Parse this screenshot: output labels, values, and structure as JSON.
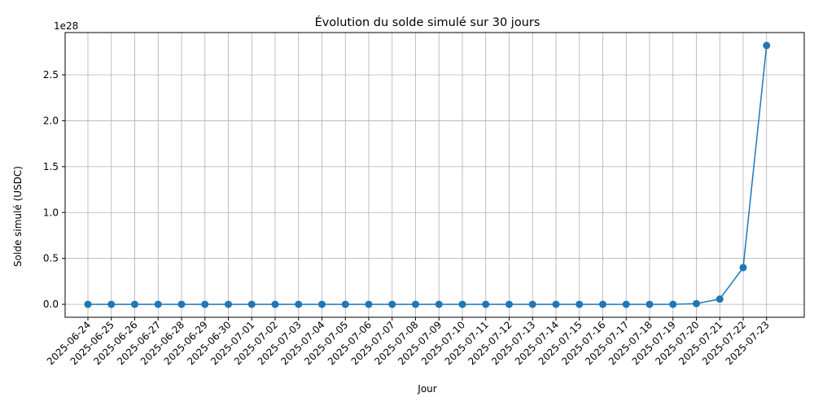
{
  "chart_data": {
    "type": "line",
    "title": "Évolution du solde simulé sur 30 jours",
    "xlabel": "Jour",
    "ylabel": "Solde simulé (USDC)",
    "y_offset_label": "1e28",
    "y_scale": 1e+28,
    "grid": true,
    "marker": "circle",
    "color": "#1f77b4",
    "x": [
      "2025-06-24",
      "2025-06-25",
      "2025-06-26",
      "2025-06-27",
      "2025-06-28",
      "2025-06-29",
      "2025-06-30",
      "2025-07-01",
      "2025-07-02",
      "2025-07-03",
      "2025-07-04",
      "2025-07-05",
      "2025-07-06",
      "2025-07-07",
      "2025-07-08",
      "2025-07-09",
      "2025-07-10",
      "2025-07-11",
      "2025-07-12",
      "2025-07-13",
      "2025-07-14",
      "2025-07-15",
      "2025-07-16",
      "2025-07-17",
      "2025-07-18",
      "2025-07-19",
      "2025-07-20",
      "2025-07-21",
      "2025-07-22",
      "2025-07-23"
    ],
    "values": [
      0,
      0,
      0,
      0,
      0,
      0,
      0,
      0,
      0,
      0,
      0,
      0,
      0,
      0,
      0,
      0,
      0,
      0,
      0,
      0,
      0,
      0,
      0,
      0,
      0,
      1e+24,
      8e+25,
      5.7e+26,
      4e+27,
      2.82e+28
    ],
    "yticks": [
      0,
      5e+27,
      1e+28,
      1.5e+28,
      2e+28,
      2.5e+28
    ],
    "ytick_labels": [
      "0.0",
      "0.5",
      "1.0",
      "1.5",
      "2.0",
      "2.5"
    ],
    "ylim": [
      -1.41e+27,
      2.961e+28
    ]
  }
}
